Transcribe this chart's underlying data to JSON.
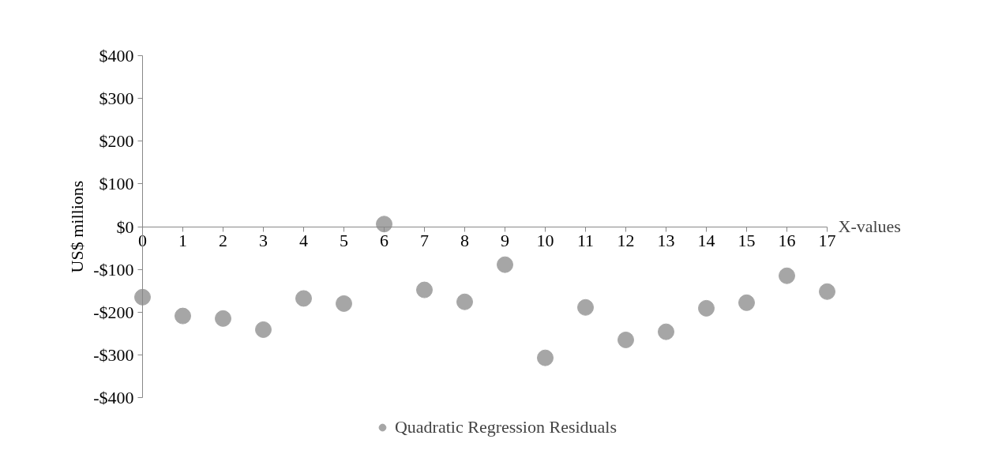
{
  "chart_data": {
    "type": "scatter",
    "xlabel": "X-values",
    "ylabel": "US$ millions",
    "x": [
      0,
      1,
      2,
      3,
      4,
      5,
      6,
      7,
      8,
      9,
      10,
      11,
      12,
      13,
      14,
      15,
      16,
      17
    ],
    "series": [
      {
        "name": "Quadratic Regression Residuals",
        "color": "#a6a6a6",
        "values": [
          -165,
          -209,
          -215,
          -241,
          -168,
          -180,
          6,
          -148,
          -176,
          -89,
          -307,
          -189,
          -265,
          -246,
          -191,
          -178,
          -115,
          -152
        ]
      }
    ],
    "xlim": [
      0,
      17
    ],
    "xticks": [
      0,
      1,
      2,
      3,
      4,
      5,
      6,
      7,
      8,
      9,
      10,
      11,
      12,
      13,
      14,
      15,
      16,
      17
    ],
    "ylim": [
      -400,
      400
    ],
    "yticks": [
      {
        "value": -400,
        "label": "-$400"
      },
      {
        "value": -300,
        "label": "-$300"
      },
      {
        "value": -200,
        "label": "-$200"
      },
      {
        "value": -100,
        "label": "-$100"
      },
      {
        "value": 0,
        "label": "$0"
      },
      {
        "value": 100,
        "label": "$100"
      },
      {
        "value": 200,
        "label": "$200"
      },
      {
        "value": 300,
        "label": "$300"
      },
      {
        "value": 400,
        "label": "$400"
      }
    ],
    "grid": false,
    "legend": "bottom",
    "marker": "circle"
  }
}
